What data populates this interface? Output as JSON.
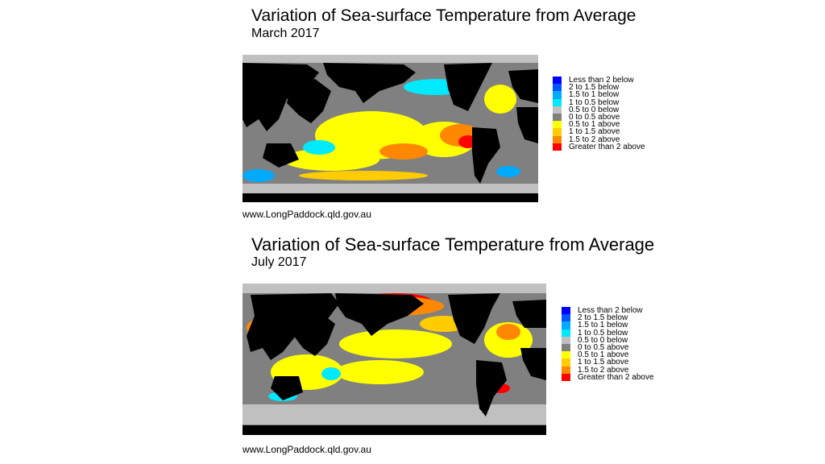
{
  "legend": [
    {
      "label": "Less than 2 below",
      "color": "#0000ff"
    },
    {
      "label": "2 to 1.5 below",
      "color": "#0055ff"
    },
    {
      "label": "1.5 to 1 below",
      "color": "#00aaff"
    },
    {
      "label": "1 to 0.5 below",
      "color": "#00eaff"
    },
    {
      "label": "0.5 to 0 below",
      "color": "#c0c0c0"
    },
    {
      "label": "0 to 0.5 above",
      "color": "#808080"
    },
    {
      "label": "0.5 to 1 above",
      "color": "#ffff00"
    },
    {
      "label": "1 to 1.5 above",
      "color": "#ffcc00"
    },
    {
      "label": "1.5 to 2 above",
      "color": "#ff8800"
    },
    {
      "label": "Greater than 2 above",
      "color": "#ff0000"
    }
  ],
  "land_color": "#000000",
  "maps": [
    {
      "title": "Variation of Sea-surface Temperature from Average",
      "subtitle": "March 2017",
      "source": "www.LongPaddock.qld.gov.au"
    },
    {
      "title": "Variation of Sea-surface Temperature from Average",
      "subtitle": "July 2017",
      "source": "www.LongPaddock.qld.gov.au"
    }
  ]
}
